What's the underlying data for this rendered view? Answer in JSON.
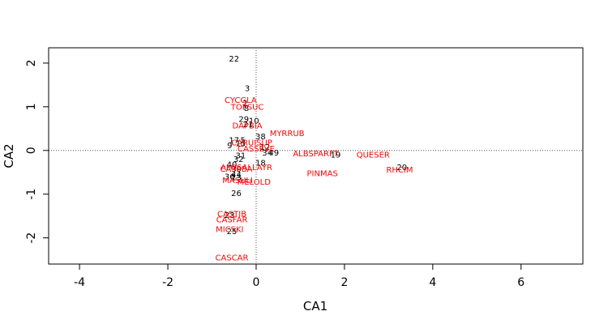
{
  "chart_data": {
    "type": "scatter",
    "xlabel": "CA1",
    "ylabel": "CA2",
    "xlim": [
      -4.7,
      7.4
    ],
    "ylim": [
      -2.6,
      2.35
    ],
    "xticks": [
      "-4",
      "-2",
      "0",
      "2",
      "4",
      "6"
    ],
    "yticks": [
      "-2",
      "-1",
      "0",
      "1",
      "2"
    ],
    "ref_lines": {
      "x": 0,
      "y": 0
    },
    "site_color": "#000000",
    "species_color": "#ff0000",
    "sites": [
      {
        "label": "22",
        "x": -0.5,
        "y": 2.1
      },
      {
        "label": "3",
        "x": -0.2,
        "y": 1.42
      },
      {
        "label": "2",
        "x": -0.25,
        "y": 1.08
      },
      {
        "label": "8",
        "x": -0.22,
        "y": 0.97
      },
      {
        "label": "29",
        "x": -0.28,
        "y": 0.72
      },
      {
        "label": "10",
        "x": -0.05,
        "y": 0.68
      },
      {
        "label": "21",
        "x": -0.18,
        "y": 0.6
      },
      {
        "label": "38",
        "x": 0.1,
        "y": 0.32
      },
      {
        "label": "17",
        "x": -0.5,
        "y": 0.24
      },
      {
        "label": "5",
        "x": -0.3,
        "y": 0.24
      },
      {
        "label": "15",
        "x": -0.35,
        "y": 0.16
      },
      {
        "label": "9",
        "x": -0.6,
        "y": 0.12
      },
      {
        "label": "12",
        "x": 0.2,
        "y": 0.08
      },
      {
        "label": "34",
        "x": 0.25,
        "y": -0.05
      },
      {
        "label": "49",
        "x": 0.4,
        "y": -0.05
      },
      {
        "label": "31",
        "x": -0.35,
        "y": -0.12
      },
      {
        "label": "32",
        "x": -0.4,
        "y": -0.2
      },
      {
        "label": "18",
        "x": 0.1,
        "y": -0.28
      },
      {
        "label": "40",
        "x": -0.55,
        "y": -0.32
      },
      {
        "label": "30",
        "x": -0.45,
        "y": -0.42
      },
      {
        "label": "44",
        "x": -0.45,
        "y": -0.55
      },
      {
        "label": "36",
        "x": -0.6,
        "y": -0.6
      },
      {
        "label": "13",
        "x": -0.45,
        "y": -0.62
      },
      {
        "label": "19",
        "x": 1.8,
        "y": -0.1
      },
      {
        "label": "20",
        "x": 3.3,
        "y": -0.38
      },
      {
        "label": "26",
        "x": -0.45,
        "y": -0.98
      },
      {
        "label": "23",
        "x": -0.6,
        "y": -1.48
      },
      {
        "label": "25",
        "x": -0.55,
        "y": -1.85
      }
    ],
    "species": [
      {
        "label": "CYCGLA",
        "x": -0.35,
        "y": 1.15
      },
      {
        "label": "TOPSUC",
        "x": -0.2,
        "y": 1.0
      },
      {
        "label": "DAPBIA",
        "x": -0.2,
        "y": 0.57
      },
      {
        "label": "MYRRUB",
        "x": 0.7,
        "y": 0.39
      },
      {
        "label": "CARUISUP",
        "x": -0.1,
        "y": 0.18
      },
      {
        "label": "CASSEVE",
        "x": 0.0,
        "y": 0.04
      },
      {
        "label": "ALBSPARFT",
        "x": 1.35,
        "y": -0.07
      },
      {
        "label": "QUESER",
        "x": 2.65,
        "y": -0.1
      },
      {
        "label": "ALOSALLAYR",
        "x": -0.22,
        "y": -0.38
      },
      {
        "label": "CASPBA",
        "x": -0.45,
        "y": -0.42
      },
      {
        "label": "MASULI",
        "x": -0.42,
        "y": -0.68
      },
      {
        "label": "MELOLD",
        "x": -0.05,
        "y": -0.72
      },
      {
        "label": "PINMAS",
        "x": 1.5,
        "y": -0.52
      },
      {
        "label": "RHCIM",
        "x": 3.25,
        "y": -0.44
      },
      {
        "label": "CASTIB",
        "x": -0.55,
        "y": -1.45
      },
      {
        "label": "CASFAR",
        "x": -0.55,
        "y": -1.58
      },
      {
        "label": "MICSKI",
        "x": -0.6,
        "y": -1.8
      },
      {
        "label": "CASCAR",
        "x": -0.55,
        "y": -2.45
      }
    ]
  }
}
